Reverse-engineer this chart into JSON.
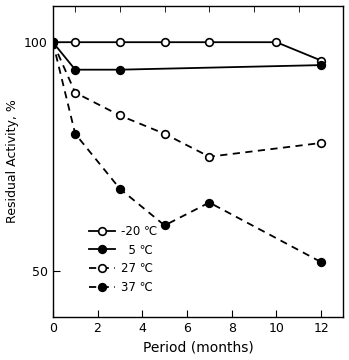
{
  "series": [
    {
      "label": "-20 ℃",
      "x": [
        0,
        1,
        3,
        5,
        7,
        10,
        12
      ],
      "y": [
        100,
        100,
        100,
        100,
        100,
        100,
        96
      ],
      "linestyle": "solid",
      "marker": "open_circle",
      "color": "black"
    },
    {
      "label": "  5 ℃",
      "x": [
        0,
        1,
        3,
        12
      ],
      "y": [
        100,
        94,
        94,
        95
      ],
      "linestyle": "solid",
      "marker": "filled_circle",
      "color": "black"
    },
    {
      "label": "27 ℃",
      "x": [
        0,
        1,
        3,
        5,
        7,
        12
      ],
      "y": [
        100,
        89,
        84,
        80,
        75,
        78
      ],
      "linestyle": "dashed",
      "marker": "open_circle",
      "color": "black"
    },
    {
      "label": "37 ℃",
      "x": [
        0,
        1,
        3,
        5,
        7,
        12
      ],
      "y": [
        100,
        80,
        68,
        60,
        65,
        52
      ],
      "linestyle": "dashed",
      "marker": "filled_circle",
      "color": "black"
    }
  ],
  "xlabel": "Period (months)",
  "ylabel": "Residual Activity, %",
  "xlim": [
    0,
    13
  ],
  "ylim": [
    40,
    108
  ],
  "xticks": [
    0,
    2,
    4,
    6,
    8,
    10,
    12
  ],
  "yticks": [
    50,
    100
  ],
  "minor_xticks": [
    1,
    3,
    5,
    7,
    9,
    11
  ],
  "background_color": "#ffffff",
  "figsize": [
    3.49,
    3.6
  ],
  "dpi": 100
}
